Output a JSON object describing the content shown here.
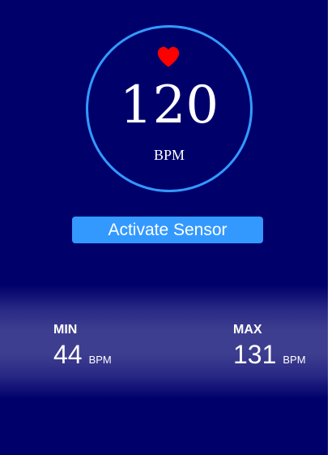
{
  "heart_rate": {
    "value": "120",
    "unit": "BPM",
    "icon": "heart-icon"
  },
  "actions": {
    "activate_label": "Activate Sensor"
  },
  "stats": {
    "min": {
      "label": "MIN",
      "value": "44",
      "unit": "BPM"
    },
    "max": {
      "label": "MAX",
      "value": "131",
      "unit": "BPM"
    }
  },
  "colors": {
    "background": "#00006b",
    "accent": "#3399ff",
    "heart": "#ff0000",
    "text": "#ffffff"
  }
}
